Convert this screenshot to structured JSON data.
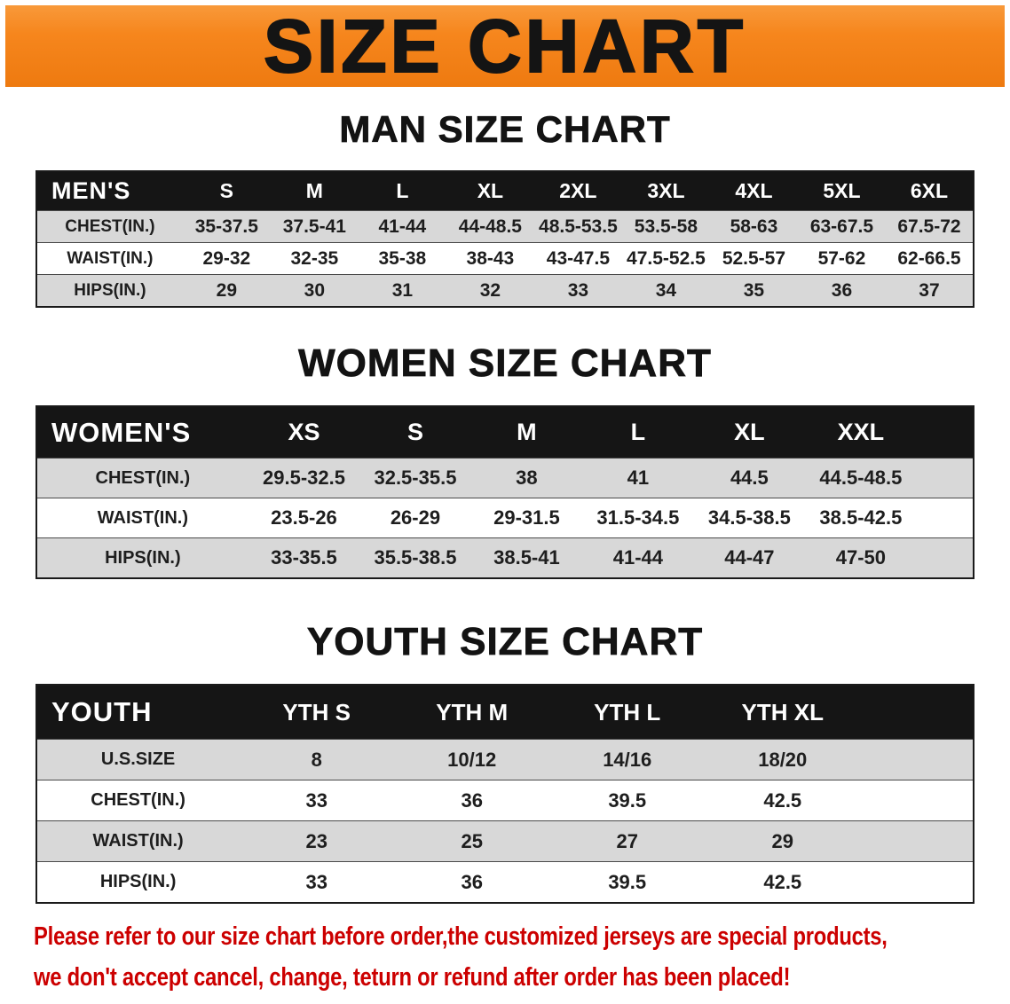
{
  "banner": {
    "title": "SIZE CHART"
  },
  "colors": {
    "banner_orange": "#f6861d",
    "table_header_black": "#151515",
    "row_gray": "#d8d8d8",
    "notice_red": "#cc0000"
  },
  "chart_data": [
    {
      "type": "table",
      "title": "MAN SIZE CHART",
      "name": "mens-size-table",
      "columns": [
        "MEN'S",
        "S",
        "M",
        "L",
        "XL",
        "2XL",
        "3XL",
        "4XL",
        "5XL",
        "6XL"
      ],
      "rows": [
        [
          "CHEST(IN.)",
          "35-37.5",
          "37.5-41",
          "41-44",
          "44-48.5",
          "48.5-53.5",
          "53.5-58",
          "58-63",
          "63-67.5",
          "67.5-72"
        ],
        [
          "WAIST(IN.)",
          "29-32",
          "32-35",
          "35-38",
          "38-43",
          "43-47.5",
          "47.5-52.5",
          "52.5-57",
          "57-62",
          "62-66.5"
        ],
        [
          "HIPS(IN.)",
          "29",
          "30",
          "31",
          "32",
          "33",
          "34",
          "35",
          "36",
          "37"
        ]
      ]
    },
    {
      "type": "table",
      "title": "WOMEN SIZE CHART",
      "name": "womens-size-table",
      "columns": [
        "WOMEN'S",
        "XS",
        "S",
        "M",
        "L",
        "XL",
        "XXL"
      ],
      "rows": [
        [
          "CHEST(IN.)",
          "29.5-32.5",
          "32.5-35.5",
          "38",
          "41",
          "44.5",
          "44.5-48.5"
        ],
        [
          "WAIST(IN.)",
          "23.5-26",
          "26-29",
          "29-31.5",
          "31.5-34.5",
          "34.5-38.5",
          "38.5-42.5"
        ],
        [
          "HIPS(IN.)",
          "33-35.5",
          "35.5-38.5",
          "38.5-41",
          "41-44",
          "44-47",
          "47-50"
        ]
      ]
    },
    {
      "type": "table",
      "title": "YOUTH SIZE CHART",
      "name": "youth-size-table",
      "columns": [
        "YOUTH",
        "YTH S",
        "YTH M",
        "YTH L",
        "YTH XL"
      ],
      "rows": [
        [
          "U.S.SIZE",
          "8",
          "10/12",
          "14/16",
          "18/20"
        ],
        [
          "CHEST(IN.)",
          "33",
          "36",
          "39.5",
          "42.5"
        ],
        [
          "WAIST(IN.)",
          "23",
          "25",
          "27",
          "29"
        ],
        [
          "HIPS(IN.)",
          "33",
          "36",
          "39.5",
          "42.5"
        ]
      ]
    }
  ],
  "notice": {
    "lines": [
      "Please refer to our size chart before order,the customized jerseys are special products,",
      "we don't accept cancel, change, teturn or refund after order has been placed!"
    ]
  }
}
